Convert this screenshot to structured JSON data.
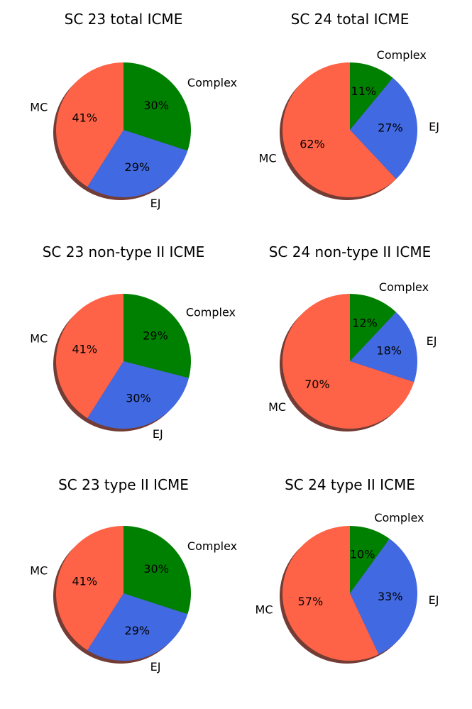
{
  "figure": {
    "description_free": true
  },
  "colors": {
    "Complex": "#008000",
    "EJ": "#4169E1",
    "MC": "#FF6347",
    "shadow": "#5a1a12"
  },
  "chart_data": [
    {
      "type": "pie",
      "title": "SC 23 total ICME",
      "labels": [
        "Complex",
        "EJ",
        "MC"
      ],
      "values": [
        30,
        29,
        41
      ],
      "percent_labels": [
        "30%",
        "29%",
        "41%"
      ]
    },
    {
      "type": "pie",
      "title": "SC 24 total ICME",
      "labels": [
        "Complex",
        "EJ",
        "MC"
      ],
      "values": [
        11,
        27,
        62
      ],
      "percent_labels": [
        "11%",
        "27%",
        "62%"
      ]
    },
    {
      "type": "pie",
      "title": "SC 23 non-type II ICME",
      "labels": [
        "Complex",
        "EJ",
        "MC"
      ],
      "values": [
        29,
        30,
        41
      ],
      "percent_labels": [
        "29%",
        "30%",
        "41%"
      ]
    },
    {
      "type": "pie",
      "title": "SC 24 non-type II ICME",
      "labels": [
        "Complex",
        "EJ",
        "MC"
      ],
      "values": [
        12,
        18,
        70
      ],
      "percent_labels": [
        "12%",
        "18%",
        "70%"
      ]
    },
    {
      "type": "pie",
      "title": "SC 23 type II ICME",
      "labels": [
        "Complex",
        "EJ",
        "MC"
      ],
      "values": [
        30,
        29,
        41
      ],
      "percent_labels": [
        "30%",
        "29%",
        "41%"
      ]
    },
    {
      "type": "pie",
      "title": "SC 24 type II ICME",
      "labels": [
        "Complex",
        "EJ",
        "MC"
      ],
      "values": [
        10,
        33,
        57
      ],
      "percent_labels": [
        "10%",
        "33%",
        "57%"
      ]
    }
  ]
}
